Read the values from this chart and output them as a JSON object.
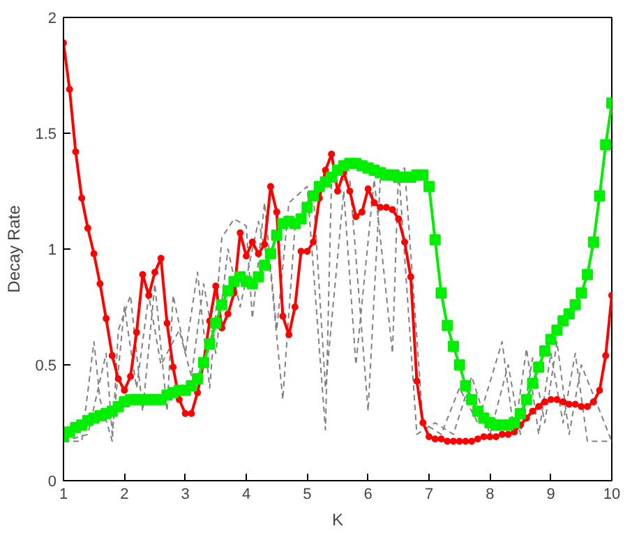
{
  "chart_data": {
    "type": "line",
    "xlabel": "K",
    "ylabel": "Decay Rate",
    "xlim": [
      1,
      10
    ],
    "ylim": [
      0,
      2
    ],
    "xticks": [
      1,
      2,
      3,
      4,
      5,
      6,
      7,
      8,
      9,
      10
    ],
    "yticks": [
      0,
      0.5,
      1,
      1.5,
      2
    ],
    "grid": false,
    "x": [
      1.0,
      1.1,
      1.2,
      1.3,
      1.4,
      1.5,
      1.6,
      1.7,
      1.8,
      1.9,
      2.0,
      2.1,
      2.2,
      2.3,
      2.4,
      2.5,
      2.6,
      2.7,
      2.8,
      2.9,
      3.0,
      3.1,
      3.2,
      3.3,
      3.4,
      3.5,
      3.6,
      3.7,
      3.8,
      3.9,
      4.0,
      4.1,
      4.2,
      4.3,
      4.4,
      4.5,
      4.6,
      4.7,
      4.8,
      4.9,
      5.0,
      5.1,
      5.2,
      5.3,
      5.4,
      5.5,
      5.6,
      5.7,
      5.8,
      5.9,
      6.0,
      6.1,
      6.2,
      6.3,
      6.4,
      6.5,
      6.6,
      6.7,
      6.8,
      6.9,
      7.0,
      7.1,
      7.2,
      7.3,
      7.4,
      7.5,
      7.6,
      7.7,
      7.8,
      7.9,
      8.0,
      8.1,
      8.2,
      8.3,
      8.4,
      8.5,
      8.6,
      8.7,
      8.8,
      8.9,
      9.0,
      9.1,
      9.2,
      9.3,
      9.4,
      9.5,
      9.6,
      9.7,
      9.8,
      9.9,
      10.0
    ],
    "series": [
      {
        "color": "#808080",
        "line_style": "dashed",
        "marker": "none",
        "x": [
          1,
          1.3,
          1.5,
          1.6,
          1.8,
          1.9,
          2.1,
          2.3,
          2.5,
          2.7,
          2.8,
          3.0,
          3.2,
          3.4,
          3.6,
          3.8,
          4.0,
          4.1,
          4.3,
          4.5,
          4.7,
          5.0,
          5.3,
          5.4,
          5.7,
          6.0,
          6.2,
          6.6,
          6.9,
          7.2,
          7.5,
          7.8,
          8.2,
          8.4,
          8.6,
          8.8,
          9.0,
          9.2,
          9.4,
          9.6,
          10
        ],
        "values": [
          0.17,
          0.17,
          0.6,
          0.35,
          0.17,
          0.65,
          0.8,
          0.3,
          0.85,
          0.3,
          0.8,
          0.55,
          0.9,
          0.4,
          1.05,
          1.13,
          1.1,
          0.7,
          1.2,
          0.65,
          1.2,
          1.27,
          0.22,
          1.3,
          1.3,
          0.3,
          1.3,
          1.35,
          0.25,
          0.2,
          0.4,
          0.25,
          0.6,
          0.2,
          0.57,
          0.2,
          0.55,
          0.25,
          0.55,
          0.17,
          0.17
        ]
      },
      {
        "color": "#808080",
        "line_style": "dashed",
        "marker": "none",
        "x": [
          1,
          1.4,
          1.7,
          1.8,
          2.0,
          2.2,
          2.4,
          2.6,
          2.9,
          3.1,
          3.3,
          3.5,
          3.7,
          3.9,
          4.2,
          4.4,
          4.6,
          4.8,
          5.1,
          5.3,
          5.6,
          5.8,
          6.1,
          6.4,
          6.5,
          6.8,
          7.1,
          7.4,
          7.7,
          8.0,
          8.3,
          8.5,
          8.7,
          8.9,
          9.1,
          9.3,
          9.5,
          10
        ],
        "values": [
          0.17,
          0.2,
          0.55,
          0.2,
          0.75,
          0.4,
          0.8,
          0.5,
          0.65,
          0.45,
          0.85,
          0.55,
          1.0,
          0.75,
          1.12,
          0.9,
          0.35,
          1.1,
          1.25,
          0.4,
          1.25,
          0.5,
          1.3,
          0.55,
          1.35,
          0.2,
          0.25,
          0.2,
          0.45,
          0.2,
          0.5,
          0.2,
          0.53,
          0.25,
          0.6,
          0.2,
          0.5,
          0.17
        ]
      },
      {
        "color": "#ff0000",
        "marker": "circle",
        "line_style": "solid",
        "values": [
          1.89,
          1.69,
          1.42,
          1.22,
          1.09,
          0.98,
          0.85,
          0.7,
          0.54,
          0.44,
          0.39,
          0.45,
          0.64,
          0.89,
          0.8,
          0.9,
          0.96,
          0.68,
          0.49,
          0.35,
          0.29,
          0.29,
          0.38,
          0.51,
          0.69,
          0.84,
          0.66,
          0.72,
          0.81,
          1.07,
          0.97,
          1.03,
          0.98,
          1.02,
          1.27,
          1.16,
          0.71,
          0.63,
          0.75,
          0.99,
          0.99,
          1.03,
          1.22,
          1.34,
          1.41,
          1.25,
          1.33,
          1.25,
          1.14,
          1.16,
          1.26,
          1.2,
          1.18,
          1.18,
          1.17,
          1.13,
          1.03,
          0.88,
          0.43,
          0.25,
          0.19,
          0.18,
          0.18,
          0.17,
          0.17,
          0.17,
          0.17,
          0.17,
          0.18,
          0.19,
          0.19,
          0.19,
          0.2,
          0.2,
          0.21,
          0.24,
          0.27,
          0.3,
          0.32,
          0.34,
          0.35,
          0.35,
          0.34,
          0.33,
          0.33,
          0.32,
          0.32,
          0.34,
          0.39,
          0.54,
          0.8
        ]
      },
      {
        "color": "#00ee00",
        "marker": "square",
        "line_style": "solid",
        "values": [
          0.19,
          0.21,
          0.23,
          0.24,
          0.26,
          0.27,
          0.28,
          0.29,
          0.3,
          0.32,
          0.34,
          0.35,
          0.35,
          0.35,
          0.35,
          0.35,
          0.35,
          0.37,
          0.38,
          0.39,
          0.39,
          0.41,
          0.44,
          0.51,
          0.59,
          0.68,
          0.76,
          0.82,
          0.86,
          0.88,
          0.86,
          0.85,
          0.88,
          0.93,
          0.98,
          1.06,
          1.11,
          1.12,
          1.11,
          1.13,
          1.18,
          1.23,
          1.27,
          1.29,
          1.31,
          1.34,
          1.36,
          1.37,
          1.37,
          1.36,
          1.35,
          1.34,
          1.33,
          1.32,
          1.32,
          1.31,
          1.31,
          1.31,
          1.32,
          1.32,
          1.27,
          1.04,
          0.81,
          0.67,
          0.58,
          0.5,
          0.41,
          0.35,
          0.3,
          0.27,
          0.25,
          0.24,
          0.24,
          0.24,
          0.25,
          0.29,
          0.35,
          0.42,
          0.49,
          0.56,
          0.61,
          0.65,
          0.69,
          0.72,
          0.76,
          0.81,
          0.89,
          1.03,
          1.23,
          1.45,
          1.63
        ]
      }
    ]
  }
}
